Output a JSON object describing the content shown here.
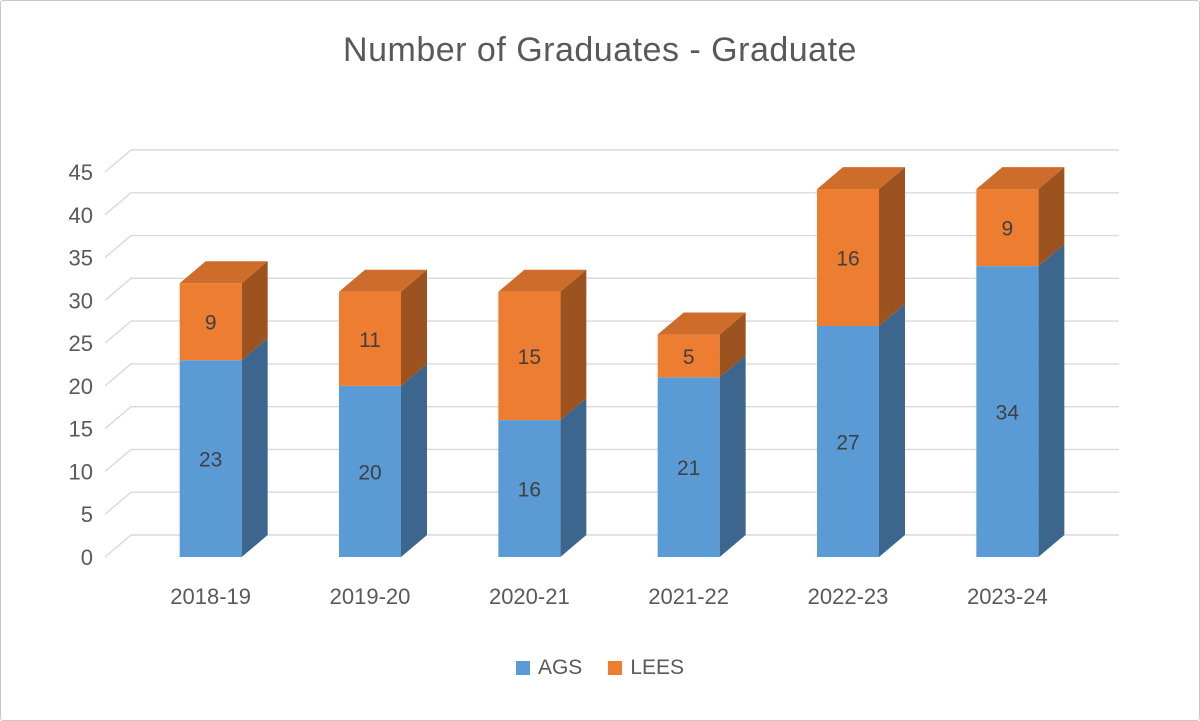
{
  "chart_data": {
    "type": "bar",
    "subtype": "stacked-3d-column",
    "title": "Number of Graduates - Graduate",
    "categories": [
      "2018-19",
      "2019-20",
      "2020-21",
      "2021-22",
      "2022-23",
      "2023-24"
    ],
    "series": [
      {
        "name": "AGS",
        "color": "#5B9BD5",
        "values": [
          23,
          20,
          16,
          21,
          27,
          34
        ]
      },
      {
        "name": "LEES",
        "color": "#ED7D31",
        "values": [
          9,
          11,
          15,
          5,
          16,
          9
        ]
      }
    ],
    "totals": [
      32,
      31,
      31,
      26,
      43,
      43
    ],
    "y_axis": {
      "min": 0,
      "max": 45,
      "step": 5,
      "ticks": [
        0,
        5,
        10,
        15,
        20,
        25,
        30,
        35,
        40,
        45
      ]
    },
    "xlabel": "",
    "ylabel": "",
    "grid": true,
    "legend": {
      "position": "bottom",
      "entries": [
        "AGS",
        "LEES"
      ]
    }
  },
  "style": {
    "title_color": "#595959",
    "axis_label_color": "#595959",
    "gridline_color": "#d9d9d9",
    "data_label_color": "#404040"
  }
}
